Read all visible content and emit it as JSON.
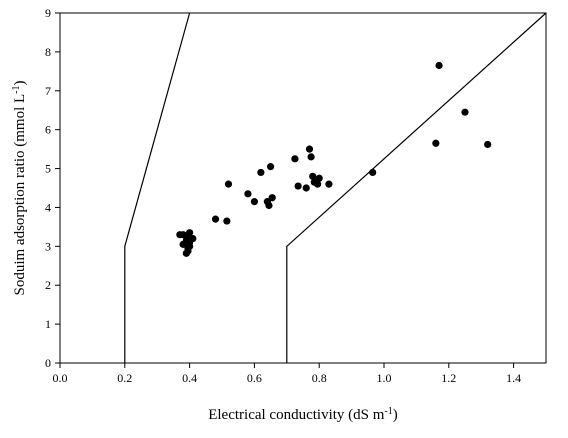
{
  "chart_data": {
    "type": "scatter",
    "title": "",
    "xlabel": "Electrical conductivity (dS m",
    "xlabel_sup": "-1",
    "xlabel_end": ")",
    "ylabel": "Soduim adsorption ratio (mmol L",
    "ylabel_sup": "-1",
    "ylabel_end": ")",
    "xlim": [
      0,
      1.5
    ],
    "ylim": [
      0,
      9
    ],
    "x_ticks": [
      0.0,
      0.2,
      0.4,
      0.6,
      0.8,
      1.0,
      1.2,
      1.4
    ],
    "x_tick_labels": [
      "0.0",
      "0.2",
      "0.4",
      "0.6",
      "0.8",
      "1.0",
      "1.2",
      "1.4"
    ],
    "y_ticks": [
      0,
      1,
      2,
      3,
      4,
      5,
      6,
      7,
      8,
      9
    ],
    "y_tick_labels": [
      "0",
      "1",
      "2",
      "3",
      "4",
      "5",
      "6",
      "7",
      "8",
      "9"
    ],
    "grid": false,
    "legend": "none",
    "point_color": "#000000",
    "boundary_lines": [
      {
        "points": [
          [
            0.2,
            0
          ],
          [
            0.2,
            3
          ],
          [
            0.4,
            9
          ]
        ]
      },
      {
        "points": [
          [
            0.7,
            0
          ],
          [
            0.7,
            3
          ],
          [
            1.5,
            9
          ]
        ]
      }
    ],
    "points": [
      {
        "x": 0.37,
        "y": 3.3
      },
      {
        "x": 0.38,
        "y": 3.3
      },
      {
        "x": 0.39,
        "y": 3.25
      },
      {
        "x": 0.4,
        "y": 3.35
      },
      {
        "x": 0.38,
        "y": 3.05
      },
      {
        "x": 0.39,
        "y": 3.15
      },
      {
        "x": 0.4,
        "y": 3.1
      },
      {
        "x": 0.41,
        "y": 3.2
      },
      {
        "x": 0.395,
        "y": 2.95
      },
      {
        "x": 0.4,
        "y": 3.0
      },
      {
        "x": 0.39,
        "y": 2.82
      },
      {
        "x": 0.395,
        "y": 2.88
      },
      {
        "x": 0.48,
        "y": 3.7
      },
      {
        "x": 0.515,
        "y": 3.65
      },
      {
        "x": 0.52,
        "y": 4.6
      },
      {
        "x": 0.58,
        "y": 4.35
      },
      {
        "x": 0.6,
        "y": 4.15
      },
      {
        "x": 0.62,
        "y": 4.9
      },
      {
        "x": 0.64,
        "y": 4.15
      },
      {
        "x": 0.645,
        "y": 4.05
      },
      {
        "x": 0.65,
        "y": 5.05
      },
      {
        "x": 0.655,
        "y": 4.25
      },
      {
        "x": 0.725,
        "y": 5.25
      },
      {
        "x": 0.735,
        "y": 4.55
      },
      {
        "x": 0.76,
        "y": 4.5
      },
      {
        "x": 0.77,
        "y": 5.5
      },
      {
        "x": 0.775,
        "y": 5.3
      },
      {
        "x": 0.78,
        "y": 4.8
      },
      {
        "x": 0.785,
        "y": 4.65
      },
      {
        "x": 0.795,
        "y": 4.6
      },
      {
        "x": 0.8,
        "y": 4.75
      },
      {
        "x": 0.83,
        "y": 4.6
      },
      {
        "x": 0.965,
        "y": 4.9
      },
      {
        "x": 1.16,
        "y": 5.65
      },
      {
        "x": 1.17,
        "y": 7.65
      },
      {
        "x": 1.25,
        "y": 6.45
      },
      {
        "x": 1.32,
        "y": 5.62
      }
    ]
  }
}
